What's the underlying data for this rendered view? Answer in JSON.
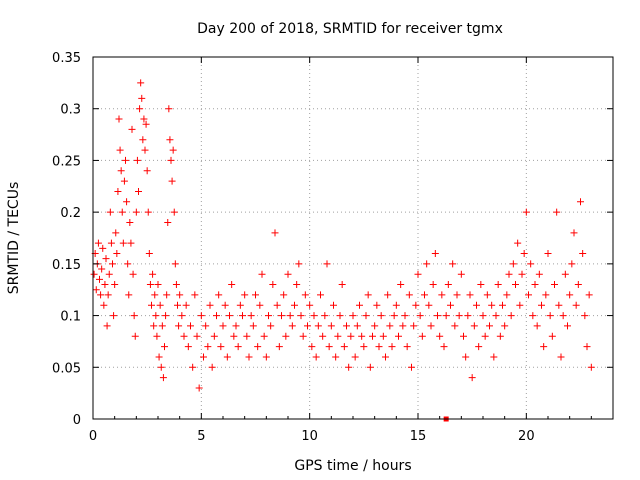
{
  "chart_data": {
    "type": "scatter",
    "title": "Day 200 of 2018, SRMTID for receiver tgmx",
    "xlabel": "GPS time / hours",
    "ylabel": "SRMTID / TECUs",
    "xlim": [
      0,
      24
    ],
    "ylim": [
      0,
      0.35
    ],
    "xticks": [
      0,
      5,
      10,
      15,
      20
    ],
    "yticks": [
      0,
      0.05,
      0.1,
      0.15,
      0.2,
      0.25,
      0.3,
      0.35
    ],
    "xtick_labels": [
      "0",
      "5",
      "10",
      "15",
      "20"
    ],
    "ytick_labels": [
      "0",
      "0.05",
      "0.1",
      "0.15",
      "0.2",
      "0.25",
      "0.3",
      "0.35"
    ],
    "grid": true,
    "marker": "+",
    "marker_color": "#ff0000",
    "series": [
      {
        "name": "SRMTID",
        "points": [
          [
            0.05,
            0.14
          ],
          [
            0.1,
            0.16
          ],
          [
            0.15,
            0.125
          ],
          [
            0.2,
            0.15
          ],
          [
            0.25,
            0.17
          ],
          [
            0.3,
            0.135
          ],
          [
            0.35,
            0.12
          ],
          [
            0.4,
            0.145
          ],
          [
            0.45,
            0.165
          ],
          [
            0.5,
            0.11
          ],
          [
            0.55,
            0.13
          ],
          [
            0.6,
            0.155
          ],
          [
            0.65,
            0.09
          ],
          [
            0.7,
            0.12
          ],
          [
            0.75,
            0.14
          ],
          [
            0.8,
            0.2
          ],
          [
            0.85,
            0.17
          ],
          [
            0.9,
            0.15
          ],
          [
            0.95,
            0.1
          ],
          [
            1.0,
            0.13
          ],
          [
            1.05,
            0.18
          ],
          [
            1.1,
            0.16
          ],
          [
            1.15,
            0.22
          ],
          [
            1.2,
            0.29
          ],
          [
            1.25,
            0.26
          ],
          [
            1.3,
            0.24
          ],
          [
            1.35,
            0.2
          ],
          [
            1.4,
            0.17
          ],
          [
            1.45,
            0.23
          ],
          [
            1.5,
            0.25
          ],
          [
            1.55,
            0.21
          ],
          [
            1.6,
            0.15
          ],
          [
            1.65,
            0.12
          ],
          [
            1.7,
            0.19
          ],
          [
            1.75,
            0.17
          ],
          [
            1.8,
            0.28
          ],
          [
            1.85,
            0.14
          ],
          [
            1.9,
            0.1
          ],
          [
            1.95,
            0.08
          ],
          [
            2.0,
            0.2
          ],
          [
            2.05,
            0.25
          ],
          [
            2.1,
            0.22
          ],
          [
            2.15,
            0.3
          ],
          [
            2.2,
            0.325
          ],
          [
            2.25,
            0.31
          ],
          [
            2.3,
            0.27
          ],
          [
            2.35,
            0.29
          ],
          [
            2.4,
            0.26
          ],
          [
            2.45,
            0.285
          ],
          [
            2.5,
            0.24
          ],
          [
            2.55,
            0.2
          ],
          [
            2.6,
            0.16
          ],
          [
            2.65,
            0.13
          ],
          [
            2.7,
            0.11
          ],
          [
            2.75,
            0.14
          ],
          [
            2.8,
            0.09
          ],
          [
            2.85,
            0.12
          ],
          [
            2.9,
            0.1
          ],
          [
            2.95,
            0.08
          ],
          [
            3.0,
            0.13
          ],
          [
            3.05,
            0.06
          ],
          [
            3.1,
            0.11
          ],
          [
            3.15,
            0.05
          ],
          [
            3.2,
            0.09
          ],
          [
            3.25,
            0.04
          ],
          [
            3.3,
            0.07
          ],
          [
            3.35,
            0.1
          ],
          [
            3.4,
            0.12
          ],
          [
            3.45,
            0.19
          ],
          [
            3.5,
            0.3
          ],
          [
            3.55,
            0.27
          ],
          [
            3.6,
            0.25
          ],
          [
            3.65,
            0.23
          ],
          [
            3.7,
            0.26
          ],
          [
            3.75,
            0.2
          ],
          [
            3.8,
            0.15
          ],
          [
            3.85,
            0.13
          ],
          [
            3.9,
            0.11
          ],
          [
            3.95,
            0.09
          ],
          [
            4.0,
            0.12
          ],
          [
            4.1,
            0.1
          ],
          [
            4.2,
            0.08
          ],
          [
            4.3,
            0.11
          ],
          [
            4.4,
            0.07
          ],
          [
            4.5,
            0.09
          ],
          [
            4.6,
            0.05
          ],
          [
            4.7,
            0.12
          ],
          [
            4.8,
            0.08
          ],
          [
            4.9,
            0.03
          ],
          [
            5.0,
            0.1
          ],
          [
            5.1,
            0.06
          ],
          [
            5.2,
            0.09
          ],
          [
            5.3,
            0.07
          ],
          [
            5.4,
            0.11
          ],
          [
            5.5,
            0.05
          ],
          [
            5.6,
            0.08
          ],
          [
            5.7,
            0.1
          ],
          [
            5.8,
            0.12
          ],
          [
            5.9,
            0.07
          ],
          [
            6.0,
            0.09
          ],
          [
            6.1,
            0.11
          ],
          [
            6.2,
            0.06
          ],
          [
            6.3,
            0.1
          ],
          [
            6.4,
            0.13
          ],
          [
            6.5,
            0.08
          ],
          [
            6.6,
            0.09
          ],
          [
            6.7,
            0.07
          ],
          [
            6.8,
            0.11
          ],
          [
            6.9,
            0.1
          ],
          [
            7.0,
            0.12
          ],
          [
            7.1,
            0.08
          ],
          [
            7.2,
            0.06
          ],
          [
            7.3,
            0.1
          ],
          [
            7.4,
            0.09
          ],
          [
            7.5,
            0.12
          ],
          [
            7.6,
            0.07
          ],
          [
            7.7,
            0.11
          ],
          [
            7.8,
            0.14
          ],
          [
            7.9,
            0.08
          ],
          [
            8.0,
            0.06
          ],
          [
            8.1,
            0.1
          ],
          [
            8.2,
            0.09
          ],
          [
            8.3,
            0.13
          ],
          [
            8.4,
            0.18
          ],
          [
            8.5,
            0.11
          ],
          [
            8.6,
            0.07
          ],
          [
            8.7,
            0.1
          ],
          [
            8.8,
            0.12
          ],
          [
            8.9,
            0.08
          ],
          [
            9.0,
            0.14
          ],
          [
            9.1,
            0.1
          ],
          [
            9.2,
            0.09
          ],
          [
            9.3,
            0.11
          ],
          [
            9.4,
            0.13
          ],
          [
            9.5,
            0.15
          ],
          [
            9.6,
            0.1
          ],
          [
            9.7,
            0.08
          ],
          [
            9.8,
            0.12
          ],
          [
            9.9,
            0.09
          ],
          [
            10.0,
            0.11
          ],
          [
            10.1,
            0.07
          ],
          [
            10.2,
            0.1
          ],
          [
            10.3,
            0.06
          ],
          [
            10.4,
            0.09
          ],
          [
            10.5,
            0.12
          ],
          [
            10.6,
            0.08
          ],
          [
            10.7,
            0.1
          ],
          [
            10.8,
            0.15
          ],
          [
            10.9,
            0.07
          ],
          [
            11.0,
            0.09
          ],
          [
            11.1,
            0.11
          ],
          [
            11.2,
            0.06
          ],
          [
            11.3,
            0.08
          ],
          [
            11.4,
            0.1
          ],
          [
            11.5,
            0.13
          ],
          [
            11.6,
            0.07
          ],
          [
            11.7,
            0.09
          ],
          [
            11.8,
            0.05
          ],
          [
            11.9,
            0.08
          ],
          [
            12.0,
            0.1
          ],
          [
            12.1,
            0.06
          ],
          [
            12.2,
            0.09
          ],
          [
            12.3,
            0.11
          ],
          [
            12.4,
            0.08
          ],
          [
            12.5,
            0.07
          ],
          [
            12.6,
            0.1
          ],
          [
            12.7,
            0.12
          ],
          [
            12.8,
            0.05
          ],
          [
            12.9,
            0.08
          ],
          [
            13.0,
            0.09
          ],
          [
            13.1,
            0.11
          ],
          [
            13.2,
            0.07
          ],
          [
            13.3,
            0.1
          ],
          [
            13.4,
            0.08
          ],
          [
            13.5,
            0.06
          ],
          [
            13.6,
            0.12
          ],
          [
            13.7,
            0.09
          ],
          [
            13.8,
            0.07
          ],
          [
            13.9,
            0.1
          ],
          [
            14.0,
            0.11
          ],
          [
            14.1,
            0.08
          ],
          [
            14.2,
            0.13
          ],
          [
            14.3,
            0.09
          ],
          [
            14.4,
            0.1
          ],
          [
            14.5,
            0.07
          ],
          [
            14.6,
            0.12
          ],
          [
            14.7,
            0.05
          ],
          [
            14.8,
            0.09
          ],
          [
            14.9,
            0.11
          ],
          [
            15.0,
            0.14
          ],
          [
            15.1,
            0.1
          ],
          [
            15.2,
            0.08
          ],
          [
            15.3,
            0.12
          ],
          [
            15.4,
            0.15
          ],
          [
            15.5,
            0.11
          ],
          [
            15.6,
            0.09
          ],
          [
            15.7,
            0.13
          ],
          [
            15.8,
            0.16
          ],
          [
            15.9,
            0.1
          ],
          [
            16.0,
            0.08
          ],
          [
            16.1,
            0.12
          ],
          [
            16.2,
            0.07
          ],
          [
            16.3,
            0.1
          ],
          [
            16.4,
            0.13
          ],
          [
            16.5,
            0.11
          ],
          [
            16.6,
            0.15
          ],
          [
            16.7,
            0.09
          ],
          [
            16.8,
            0.12
          ],
          [
            16.9,
            0.1
          ],
          [
            17.0,
            0.14
          ],
          [
            17.1,
            0.08
          ],
          [
            17.2,
            0.06
          ],
          [
            17.3,
            0.1
          ],
          [
            17.4,
            0.12
          ],
          [
            17.5,
            0.04
          ],
          [
            17.6,
            0.09
          ],
          [
            17.7,
            0.11
          ],
          [
            17.8,
            0.07
          ],
          [
            17.9,
            0.13
          ],
          [
            18.0,
            0.1
          ],
          [
            18.1,
            0.08
          ],
          [
            18.2,
            0.12
          ],
          [
            18.3,
            0.09
          ],
          [
            18.4,
            0.11
          ],
          [
            18.5,
            0.06
          ],
          [
            18.6,
            0.1
          ],
          [
            18.7,
            0.13
          ],
          [
            18.8,
            0.08
          ],
          [
            18.9,
            0.11
          ],
          [
            19.0,
            0.09
          ],
          [
            19.1,
            0.12
          ],
          [
            19.2,
            0.14
          ],
          [
            19.3,
            0.1
          ],
          [
            19.4,
            0.15
          ],
          [
            19.5,
            0.13
          ],
          [
            19.6,
            0.17
          ],
          [
            19.7,
            0.11
          ],
          [
            19.8,
            0.14
          ],
          [
            19.9,
            0.16
          ],
          [
            20.0,
            0.2
          ],
          [
            20.1,
            0.12
          ],
          [
            20.2,
            0.15
          ],
          [
            20.3,
            0.1
          ],
          [
            20.4,
            0.13
          ],
          [
            20.5,
            0.09
          ],
          [
            20.6,
            0.14
          ],
          [
            20.7,
            0.11
          ],
          [
            20.8,
            0.07
          ],
          [
            20.9,
            0.12
          ],
          [
            21.0,
            0.16
          ],
          [
            21.1,
            0.1
          ],
          [
            21.2,
            0.08
          ],
          [
            21.3,
            0.13
          ],
          [
            21.4,
            0.2
          ],
          [
            21.5,
            0.11
          ],
          [
            21.6,
            0.06
          ],
          [
            21.7,
            0.1
          ],
          [
            21.8,
            0.14
          ],
          [
            21.9,
            0.09
          ],
          [
            22.0,
            0.12
          ],
          [
            22.1,
            0.15
          ],
          [
            22.2,
            0.18
          ],
          [
            22.3,
            0.11
          ],
          [
            22.4,
            0.13
          ],
          [
            22.5,
            0.21
          ],
          [
            22.6,
            0.16
          ],
          [
            22.7,
            0.1
          ],
          [
            22.8,
            0.07
          ],
          [
            22.9,
            0.12
          ],
          [
            23.0,
            0.05
          ],
          [
            16.3,
            0.0
          ]
        ]
      }
    ]
  }
}
